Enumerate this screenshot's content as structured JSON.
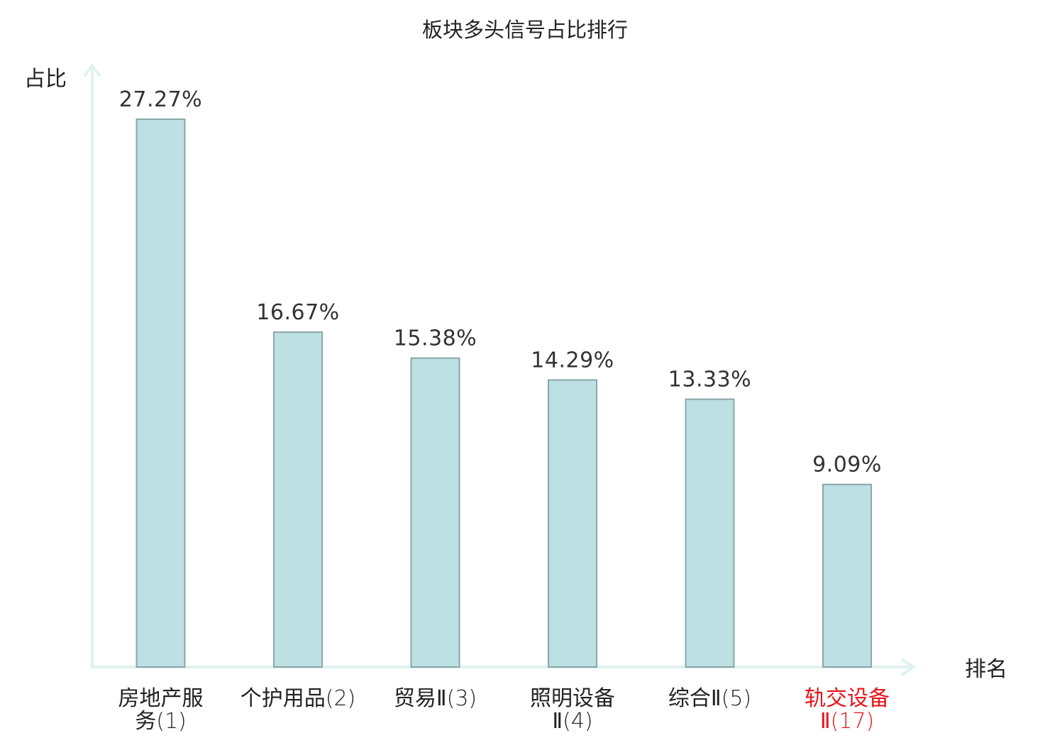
{
  "chart_data": {
    "type": "bar",
    "title": "板块多头信号占比排行",
    "ylabel": "占比",
    "xlabel": "排名",
    "categories": [
      {
        "name": "房地产服务",
        "rank": "(1)",
        "highlight": false
      },
      {
        "name": "个护用品",
        "rank": "(2)",
        "highlight": false
      },
      {
        "name": "贸易Ⅱ",
        "rank": "(3)",
        "highlight": false
      },
      {
        "name": "照明设备Ⅱ",
        "rank": "(4)",
        "highlight": false
      },
      {
        "name": "综合Ⅱ",
        "rank": "(5)",
        "highlight": false
      },
      {
        "name": "轨交设备Ⅱ",
        "rank": "(17)",
        "highlight": true
      }
    ],
    "values": [
      27.27,
      16.67,
      15.38,
      14.29,
      13.33,
      9.09
    ],
    "value_labels": [
      "27.27%",
      "16.67%",
      "15.38%",
      "14.29%",
      "13.33%",
      "9.09%"
    ],
    "unit": "%",
    "ylim": [
      0,
      27.27
    ],
    "grid": false,
    "legend": "none",
    "colors": {
      "bar_fill": "#bde0e2",
      "bar_stroke": "#8aa6a8",
      "axis": "#e0f2ef",
      "highlight_label": "#e8131a",
      "label": "#222222"
    }
  }
}
